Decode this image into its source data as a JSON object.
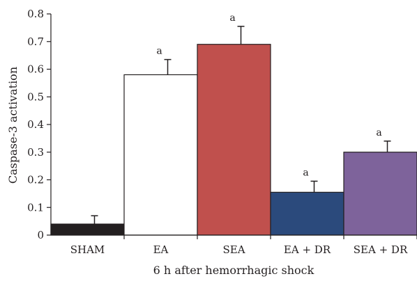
{
  "chart_data": {
    "type": "bar",
    "categories": [
      "SHAM",
      "EA",
      "SEA",
      "EA + DR",
      "SEA + DR"
    ],
    "values": [
      0.04,
      0.58,
      0.69,
      0.155,
      0.3
    ],
    "errors": [
      0.03,
      0.055,
      0.065,
      0.04,
      0.04
    ],
    "annotations": [
      "",
      "a",
      "a",
      "a",
      "a"
    ],
    "colors": [
      "#231f20",
      "#ffffff",
      "#c0504d",
      "#2b4a7c",
      "#7e639b"
    ],
    "xlabel": "6 h after hemorrhagic shock",
    "ylabel": "Caspase-3 activation",
    "ylim": [
      0,
      0.8
    ],
    "yticks": [
      "0",
      "0.1",
      "0.2",
      "0.3",
      "0.4",
      "0.5",
      "0.6",
      "0.7",
      "0.8"
    ],
    "grid": false
  }
}
